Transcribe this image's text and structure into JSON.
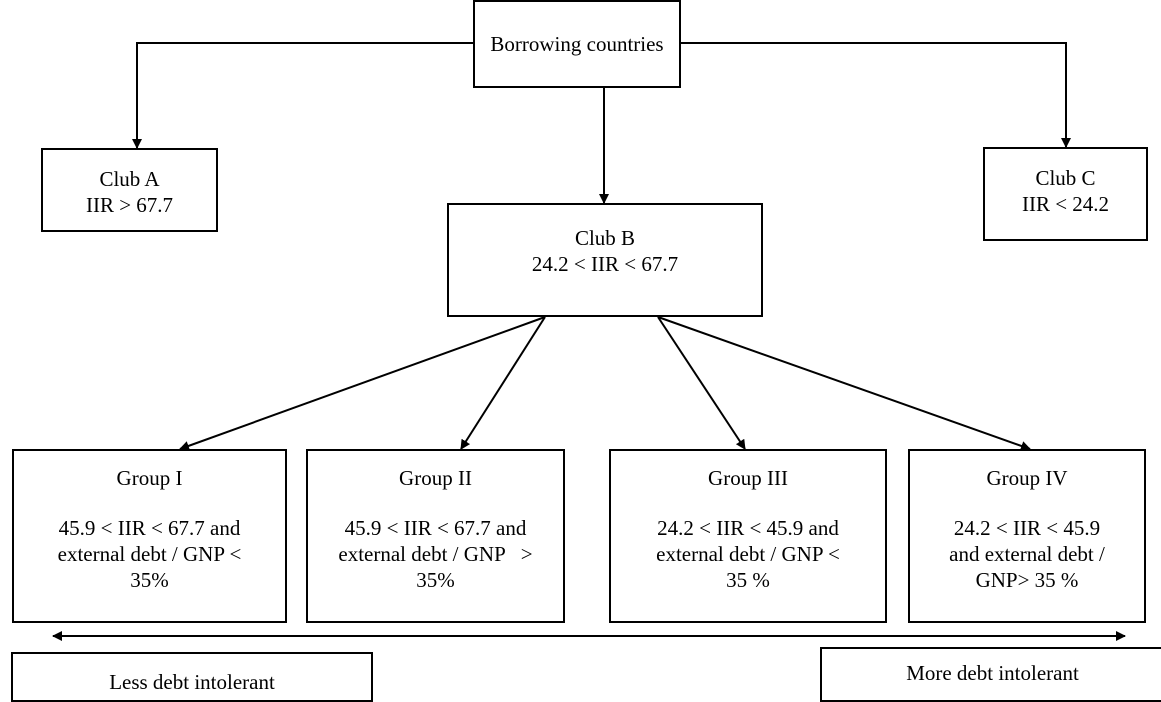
{
  "root": {
    "label": "Borrowing countries"
  },
  "clubs": {
    "a": {
      "name": "Club A",
      "rule": "IIR > 67.7"
    },
    "b": {
      "name": "Club B",
      "rule": "24.2 < IIR < 67.7"
    },
    "c": {
      "name": "Club C",
      "rule": "IIR < 24.2"
    }
  },
  "groups": [
    {
      "name": "Group I",
      "lines": [
        "45.9 < IIR < 67.7 and",
        "external debt / GNP <",
        "35%"
      ]
    },
    {
      "name": "Group II",
      "lines": [
        "45.9 < IIR < 67.7 and",
        "external debt / GNP   >",
        "35%"
      ]
    },
    {
      "name": "Group III",
      "lines": [
        "24.2 < IIR < 45.9 and",
        "external debt / GNP <",
        "35 %"
      ]
    },
    {
      "name": "Group IV",
      "lines": [
        "24.2 < IIR < 45.9",
        "and external debt /",
        "GNP> 35 %"
      ]
    }
  ],
  "scale": {
    "left_label": "Less debt intolerant",
    "right_label": "More debt intolerant"
  }
}
